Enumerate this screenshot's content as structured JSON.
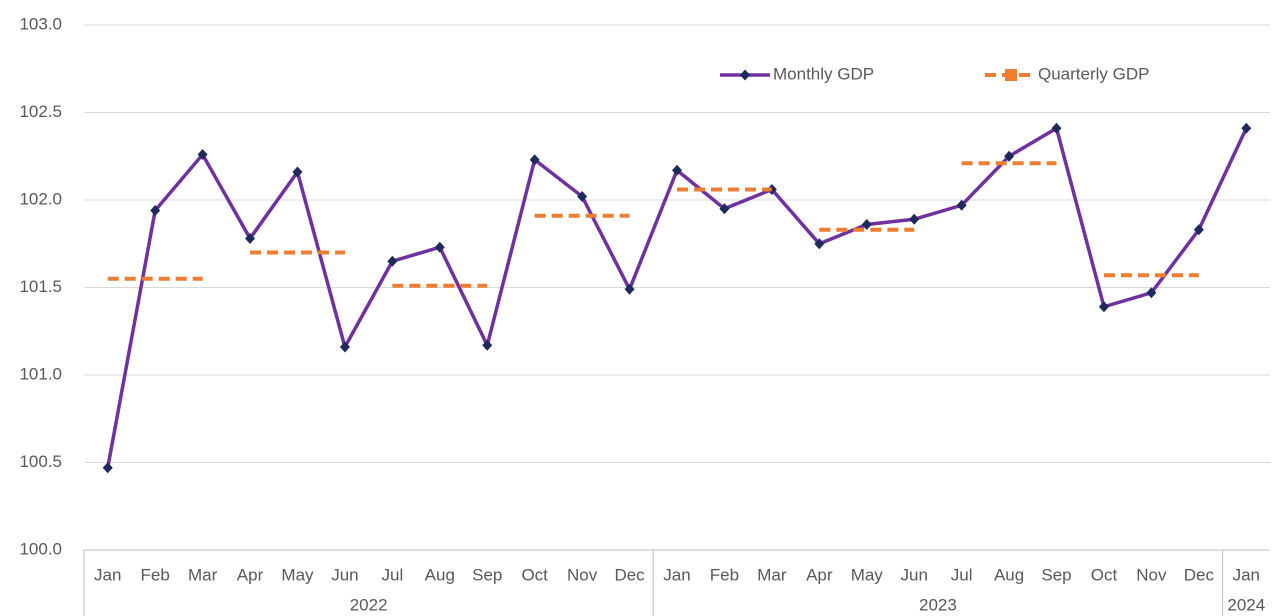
{
  "chart_data": {
    "type": "line",
    "categories": [
      "Jan",
      "Feb",
      "Mar",
      "Apr",
      "May",
      "Jun",
      "Jul",
      "Aug",
      "Sep",
      "Oct",
      "Nov",
      "Dec",
      "Jan",
      "Feb",
      "Mar",
      "Apr",
      "May",
      "Jun",
      "Jul",
      "Aug",
      "Sep",
      "Oct",
      "Nov",
      "Dec",
      "Jan"
    ],
    "category_groups": [
      {
        "name": "2022",
        "span": 12
      },
      {
        "name": "2023",
        "span": 12
      },
      {
        "name": "2024",
        "span": 1
      }
    ],
    "series": [
      {
        "name": "Monthly GDP",
        "color": "#7030a0",
        "marker_color": "#1f2a5c",
        "values": [
          100.47,
          101.94,
          102.26,
          101.78,
          102.16,
          101.16,
          101.65,
          101.73,
          101.17,
          102.23,
          102.02,
          101.49,
          102.17,
          101.95,
          102.06,
          101.75,
          101.86,
          101.89,
          101.97,
          102.25,
          102.41,
          101.39,
          101.47,
          101.83,
          102.41
        ]
      },
      {
        "name": "Quarterly GDP",
        "color": "#ed7d31",
        "dashed": true,
        "values": [
          101.55,
          101.55,
          101.55,
          101.7,
          101.7,
          101.7,
          101.51,
          101.51,
          101.51,
          101.91,
          101.91,
          101.91,
          102.06,
          102.06,
          102.06,
          101.83,
          101.83,
          101.83,
          102.21,
          102.21,
          102.21,
          101.57,
          101.57,
          101.57,
          null
        ]
      }
    ],
    "ylim": [
      100,
      103
    ],
    "yticks": [
      {
        "value": 100,
        "label": "100.0"
      },
      {
        "value": 100.5,
        "label": "100.5"
      },
      {
        "value": 101,
        "label": "101.0"
      },
      {
        "value": 101.5,
        "label": "101.5"
      },
      {
        "value": 102,
        "label": "102.0"
      },
      {
        "value": 102.5,
        "label": "102.5"
      },
      {
        "value": 103,
        "label": "103.0"
      }
    ],
    "grid": true,
    "legend": "top-right"
  }
}
